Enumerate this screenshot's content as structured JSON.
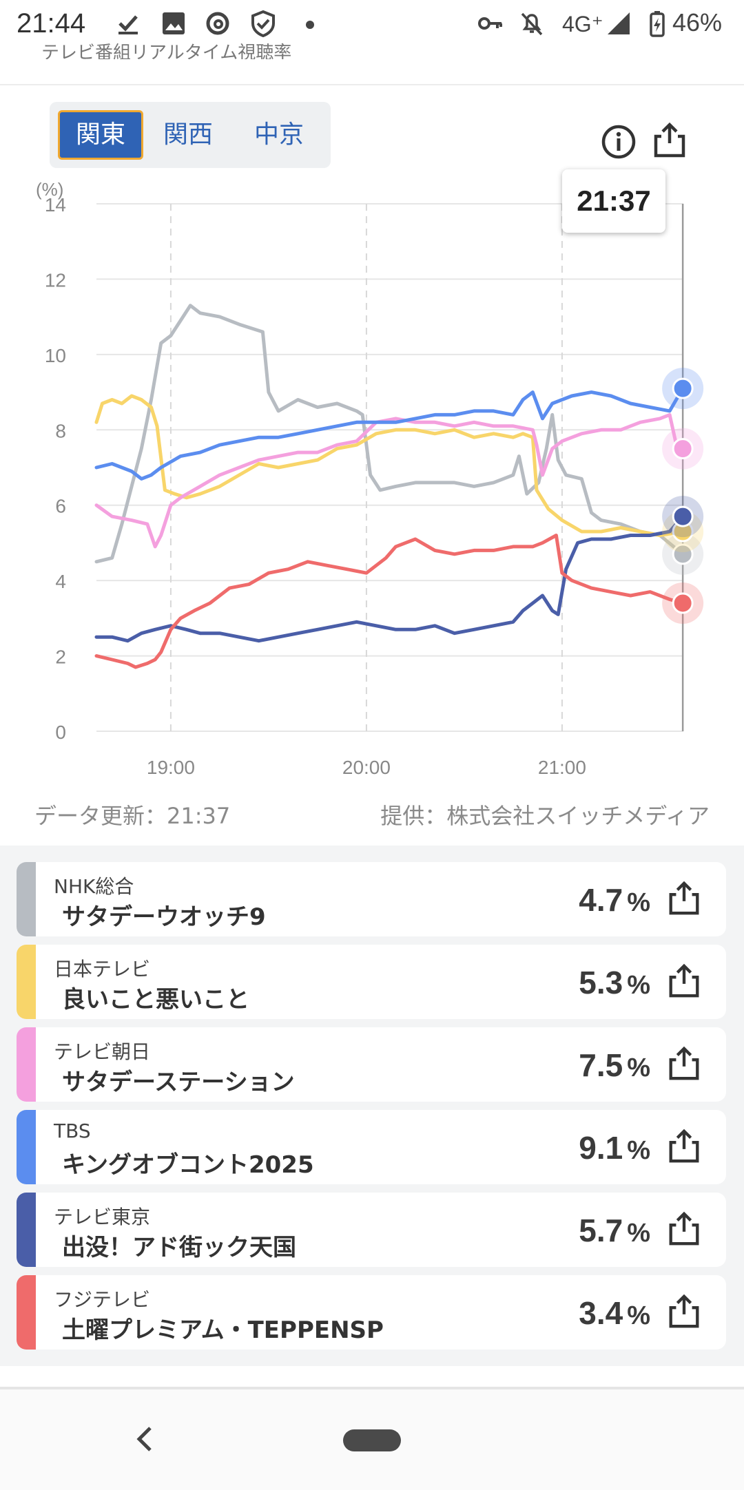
{
  "status_bar": {
    "time": "21:44",
    "network": "4G⁺",
    "battery": "46%"
  },
  "header": {
    "peek_title": "テレビ番組リアルタイム視聴率"
  },
  "region_tabs": [
    {
      "label": "関東",
      "active": true
    },
    {
      "label": "関西",
      "active": false
    },
    {
      "label": "中京",
      "active": false
    }
  ],
  "tooltip": {
    "time": "21:37"
  },
  "footer": {
    "updated": "データ更新：21:37",
    "provider": "提供：株式会社スイッチメディア"
  },
  "chart_data": {
    "type": "line",
    "y_unit_label": "(%)",
    "ylim": [
      0,
      14
    ],
    "yticks": [
      "0",
      "2",
      "4",
      "6",
      "8",
      "10",
      "12",
      "14"
    ],
    "xticks": [
      {
        "label": "19:00",
        "x": 19.0
      },
      {
        "label": "20:00",
        "x": 20.0
      },
      {
        "label": "21:00",
        "x": 21.0
      }
    ],
    "xlim": [
      18.62,
      21.62
    ],
    "cursor_x": 21.617,
    "grid": true,
    "series": [
      {
        "name": "NHK総合",
        "color": "#b7bcc2",
        "points": [
          [
            18.62,
            4.5
          ],
          [
            18.7,
            4.6
          ],
          [
            18.75,
            5.5
          ],
          [
            18.8,
            6.5
          ],
          [
            18.85,
            7.5
          ],
          [
            18.9,
            8.8
          ],
          [
            18.95,
            10.3
          ],
          [
            19.0,
            10.5
          ],
          [
            19.05,
            10.9
          ],
          [
            19.1,
            11.3
          ],
          [
            19.15,
            11.1
          ],
          [
            19.25,
            11.0
          ],
          [
            19.35,
            10.8
          ],
          [
            19.47,
            10.6
          ],
          [
            19.5,
            9.0
          ],
          [
            19.55,
            8.5
          ],
          [
            19.65,
            8.8
          ],
          [
            19.75,
            8.6
          ],
          [
            19.85,
            8.7
          ],
          [
            19.95,
            8.5
          ],
          [
            19.98,
            8.4
          ],
          [
            20.02,
            6.8
          ],
          [
            20.07,
            6.4
          ],
          [
            20.15,
            6.5
          ],
          [
            20.25,
            6.6
          ],
          [
            20.35,
            6.6
          ],
          [
            20.45,
            6.6
          ],
          [
            20.55,
            6.5
          ],
          [
            20.65,
            6.6
          ],
          [
            20.75,
            6.8
          ],
          [
            20.78,
            7.3
          ],
          [
            20.82,
            6.3
          ],
          [
            20.88,
            6.6
          ],
          [
            20.92,
            7.5
          ],
          [
            20.95,
            8.4
          ],
          [
            20.98,
            7.2
          ],
          [
            21.02,
            6.8
          ],
          [
            21.1,
            6.7
          ],
          [
            21.15,
            5.8
          ],
          [
            21.2,
            5.6
          ],
          [
            21.3,
            5.5
          ],
          [
            21.4,
            5.3
          ],
          [
            21.5,
            5.2
          ],
          [
            21.617,
            4.7
          ]
        ]
      },
      {
        "name": "日本テレビ",
        "color": "#f8d56a",
        "points": [
          [
            18.62,
            8.2
          ],
          [
            18.65,
            8.7
          ],
          [
            18.7,
            8.8
          ],
          [
            18.75,
            8.7
          ],
          [
            18.8,
            8.9
          ],
          [
            18.85,
            8.8
          ],
          [
            18.9,
            8.6
          ],
          [
            18.93,
            8.1
          ],
          [
            18.97,
            6.4
          ],
          [
            19.02,
            6.3
          ],
          [
            19.08,
            6.2
          ],
          [
            19.15,
            6.3
          ],
          [
            19.25,
            6.5
          ],
          [
            19.35,
            6.8
          ],
          [
            19.45,
            7.1
          ],
          [
            19.55,
            7.0
          ],
          [
            19.65,
            7.1
          ],
          [
            19.75,
            7.2
          ],
          [
            19.85,
            7.5
          ],
          [
            19.95,
            7.6
          ],
          [
            20.05,
            7.9
          ],
          [
            20.15,
            8.0
          ],
          [
            20.25,
            8.0
          ],
          [
            20.35,
            7.9
          ],
          [
            20.45,
            8.0
          ],
          [
            20.55,
            7.8
          ],
          [
            20.65,
            7.9
          ],
          [
            20.75,
            7.8
          ],
          [
            20.8,
            7.9
          ],
          [
            20.85,
            7.8
          ],
          [
            20.87,
            6.4
          ],
          [
            20.93,
            5.9
          ],
          [
            21.0,
            5.6
          ],
          [
            21.1,
            5.3
          ],
          [
            21.2,
            5.3
          ],
          [
            21.3,
            5.4
          ],
          [
            21.4,
            5.3
          ],
          [
            21.5,
            5.2
          ],
          [
            21.617,
            5.3
          ]
        ]
      },
      {
        "name": "テレビ朝日",
        "color": "#f4a0de",
        "points": [
          [
            18.62,
            6.0
          ],
          [
            18.7,
            5.7
          ],
          [
            18.8,
            5.6
          ],
          [
            18.88,
            5.5
          ],
          [
            18.92,
            4.9
          ],
          [
            18.95,
            5.2
          ],
          [
            19.0,
            6.0
          ],
          [
            19.05,
            6.2
          ],
          [
            19.15,
            6.5
          ],
          [
            19.25,
            6.8
          ],
          [
            19.35,
            7.0
          ],
          [
            19.45,
            7.2
          ],
          [
            19.55,
            7.3
          ],
          [
            19.65,
            7.4
          ],
          [
            19.75,
            7.4
          ],
          [
            19.85,
            7.6
          ],
          [
            19.95,
            7.7
          ],
          [
            20.05,
            8.2
          ],
          [
            20.15,
            8.3
          ],
          [
            20.25,
            8.2
          ],
          [
            20.35,
            8.2
          ],
          [
            20.45,
            8.1
          ],
          [
            20.55,
            8.2
          ],
          [
            20.65,
            8.1
          ],
          [
            20.75,
            8.1
          ],
          [
            20.85,
            8.0
          ],
          [
            20.87,
            7.6
          ],
          [
            20.9,
            6.8
          ],
          [
            20.95,
            7.5
          ],
          [
            21.0,
            7.7
          ],
          [
            21.1,
            7.9
          ],
          [
            21.2,
            8.0
          ],
          [
            21.3,
            8.0
          ],
          [
            21.4,
            8.2
          ],
          [
            21.5,
            8.3
          ],
          [
            21.55,
            8.4
          ],
          [
            21.58,
            7.7
          ],
          [
            21.617,
            7.5
          ]
        ]
      },
      {
        "name": "TBS",
        "color": "#5b8def",
        "points": [
          [
            18.62,
            7.0
          ],
          [
            18.7,
            7.1
          ],
          [
            18.75,
            7.0
          ],
          [
            18.8,
            6.9
          ],
          [
            18.85,
            6.7
          ],
          [
            18.9,
            6.8
          ],
          [
            18.95,
            7.0
          ],
          [
            19.05,
            7.3
          ],
          [
            19.15,
            7.4
          ],
          [
            19.25,
            7.6
          ],
          [
            19.35,
            7.7
          ],
          [
            19.45,
            7.8
          ],
          [
            19.55,
            7.8
          ],
          [
            19.65,
            7.9
          ],
          [
            19.75,
            8.0
          ],
          [
            19.85,
            8.1
          ],
          [
            19.95,
            8.2
          ],
          [
            20.05,
            8.2
          ],
          [
            20.15,
            8.2
          ],
          [
            20.25,
            8.3
          ],
          [
            20.35,
            8.4
          ],
          [
            20.45,
            8.4
          ],
          [
            20.55,
            8.5
          ],
          [
            20.65,
            8.5
          ],
          [
            20.75,
            8.4
          ],
          [
            20.8,
            8.8
          ],
          [
            20.85,
            9.0
          ],
          [
            20.9,
            8.3
          ],
          [
            20.95,
            8.7
          ],
          [
            21.05,
            8.9
          ],
          [
            21.15,
            9.0
          ],
          [
            21.25,
            8.9
          ],
          [
            21.35,
            8.7
          ],
          [
            21.45,
            8.6
          ],
          [
            21.55,
            8.5
          ],
          [
            21.617,
            9.1
          ]
        ]
      },
      {
        "name": "テレビ東京",
        "color": "#4a5ea8",
        "points": [
          [
            18.62,
            2.5
          ],
          [
            18.7,
            2.5
          ],
          [
            18.78,
            2.4
          ],
          [
            18.85,
            2.6
          ],
          [
            18.92,
            2.7
          ],
          [
            19.0,
            2.8
          ],
          [
            19.08,
            2.7
          ],
          [
            19.15,
            2.6
          ],
          [
            19.25,
            2.6
          ],
          [
            19.35,
            2.5
          ],
          [
            19.45,
            2.4
          ],
          [
            19.55,
            2.5
          ],
          [
            19.65,
            2.6
          ],
          [
            19.75,
            2.7
          ],
          [
            19.85,
            2.8
          ],
          [
            19.95,
            2.9
          ],
          [
            20.05,
            2.8
          ],
          [
            20.15,
            2.7
          ],
          [
            20.25,
            2.7
          ],
          [
            20.35,
            2.8
          ],
          [
            20.45,
            2.6
          ],
          [
            20.55,
            2.7
          ],
          [
            20.65,
            2.8
          ],
          [
            20.75,
            2.9
          ],
          [
            20.8,
            3.2
          ],
          [
            20.85,
            3.4
          ],
          [
            20.9,
            3.6
          ],
          [
            20.95,
            3.2
          ],
          [
            20.98,
            3.1
          ],
          [
            21.02,
            4.3
          ],
          [
            21.08,
            5.0
          ],
          [
            21.15,
            5.1
          ],
          [
            21.25,
            5.1
          ],
          [
            21.35,
            5.2
          ],
          [
            21.45,
            5.2
          ],
          [
            21.55,
            5.3
          ],
          [
            21.617,
            5.7
          ]
        ]
      },
      {
        "name": "フジテレビ",
        "color": "#ef6b6b",
        "points": [
          [
            18.62,
            2.0
          ],
          [
            18.7,
            1.9
          ],
          [
            18.78,
            1.8
          ],
          [
            18.82,
            1.7
          ],
          [
            18.88,
            1.8
          ],
          [
            18.92,
            1.9
          ],
          [
            18.95,
            2.1
          ],
          [
            19.0,
            2.7
          ],
          [
            19.05,
            3.0
          ],
          [
            19.12,
            3.2
          ],
          [
            19.2,
            3.4
          ],
          [
            19.3,
            3.8
          ],
          [
            19.4,
            3.9
          ],
          [
            19.5,
            4.2
          ],
          [
            19.6,
            4.3
          ],
          [
            19.7,
            4.5
          ],
          [
            19.8,
            4.4
          ],
          [
            19.9,
            4.3
          ],
          [
            20.0,
            4.2
          ],
          [
            20.1,
            4.6
          ],
          [
            20.15,
            4.9
          ],
          [
            20.2,
            5.0
          ],
          [
            20.25,
            5.1
          ],
          [
            20.35,
            4.8
          ],
          [
            20.45,
            4.7
          ],
          [
            20.55,
            4.8
          ],
          [
            20.65,
            4.8
          ],
          [
            20.75,
            4.9
          ],
          [
            20.85,
            4.9
          ],
          [
            20.9,
            5.0
          ],
          [
            20.97,
            5.2
          ],
          [
            21.0,
            4.2
          ],
          [
            21.05,
            4.0
          ],
          [
            21.15,
            3.8
          ],
          [
            21.25,
            3.7
          ],
          [
            21.35,
            3.6
          ],
          [
            21.45,
            3.7
          ],
          [
            21.55,
            3.5
          ],
          [
            21.617,
            3.4
          ]
        ]
      }
    ]
  },
  "channels": [
    {
      "channel": "NHK総合",
      "program": "サタデーウオッチ9",
      "rating": "4.7",
      "unit": "%",
      "color": "#b7bcc2"
    },
    {
      "channel": "日本テレビ",
      "program": "良いこと悪いこと",
      "rating": "5.3",
      "unit": "%",
      "color": "#f8d56a"
    },
    {
      "channel": "テレビ朝日",
      "program": "サタデーステーション",
      "rating": "7.5",
      "unit": "%",
      "color": "#f4a0de"
    },
    {
      "channel": "TBS",
      "program": "キングオブコント2025",
      "rating": "9.1",
      "unit": "%",
      "color": "#5b8def"
    },
    {
      "channel": "テレビ東京",
      "program": "出没！アド街ック天国",
      "rating": "5.7",
      "unit": "%",
      "color": "#4a5ea8"
    },
    {
      "channel": "フジテレビ",
      "program": "土曜プレミアム・TEPPENSP",
      "rating": "3.4",
      "unit": "%",
      "color": "#ef6b6b"
    }
  ]
}
